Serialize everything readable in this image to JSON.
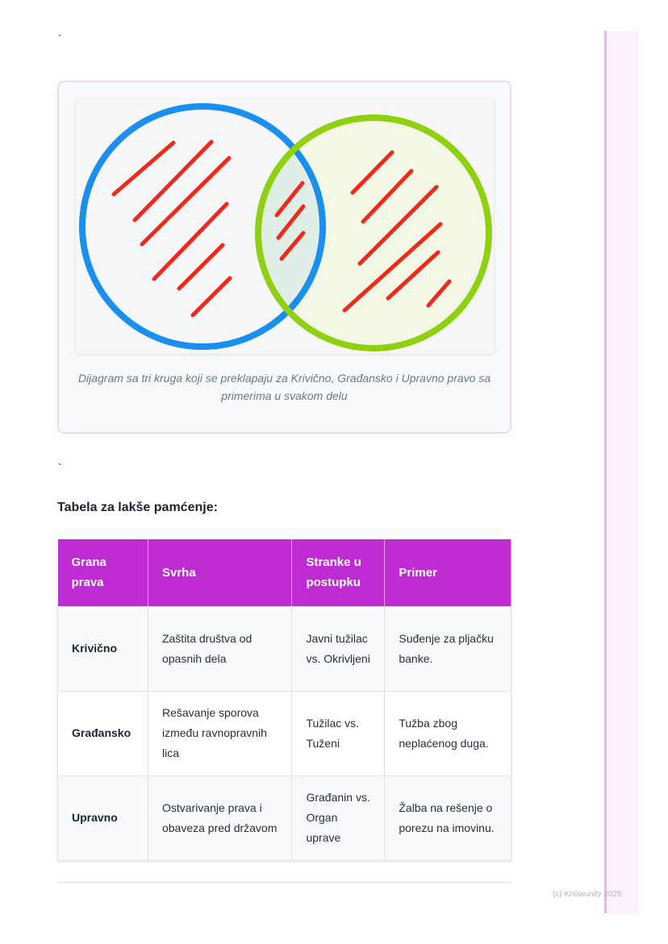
{
  "backtick_top": "`",
  "figure": {
    "caption": "Dijagram sa tri kruga koji se preklapaju za Krivično, Građansko i Upravno pravo sa primerima u svakom delu",
    "colors": {
      "left_circle": "#1a8ff0",
      "right_circle": "#8fd010",
      "hatch": "#ee2a1a"
    }
  },
  "backtick_bottom": "`",
  "heading": "Tabela za lakše pamćenje:",
  "table": {
    "headers": [
      "Grana prava",
      "Svrha",
      "Stranke u postupku",
      "Primer"
    ],
    "rows": [
      [
        "Krivično",
        "Zaštita društva od opasnih dela",
        "Javni tužilac vs. Okrivljeni",
        "Suđenje za pljačku banke."
      ],
      [
        "Građansko",
        "Rešavanje sporova između ravnopravnih lica",
        "Tužilac vs. Tuženi",
        "Tužba zbog neplaćenog duga."
      ],
      [
        "Upravno",
        "Ostvarivanje prava i obaveza pred državom",
        "Građanin vs. Organ uprave",
        "Žalba na rešenje o porezu na imovinu."
      ]
    ],
    "header_color": "#bf2bd3"
  },
  "footer": "(c) Knowunity 2025"
}
